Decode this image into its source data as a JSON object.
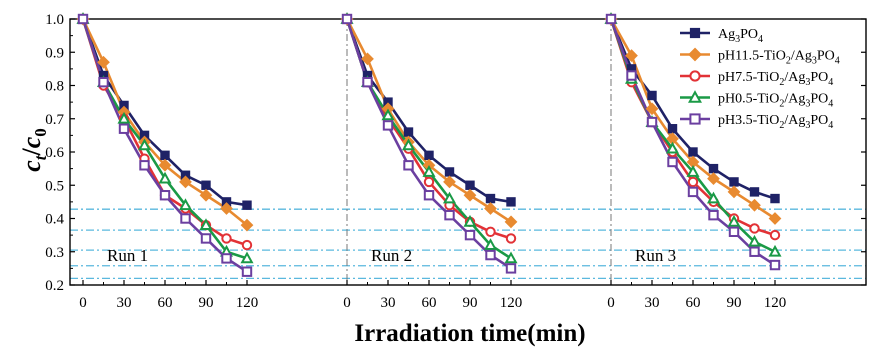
{
  "chart_data": {
    "type": "line",
    "xlabel": "Irradiation time(min)",
    "ylabel": {
      "main": "c",
      "sub1": "t",
      "sep": "/",
      "main2": "c",
      "sub2": "0"
    },
    "ylim": [
      0.2,
      1.0
    ],
    "yticks": [
      "0.2",
      "0.3",
      "0.4",
      "0.5",
      "0.6",
      "0.7",
      "0.8",
      "0.9",
      "1.0"
    ],
    "xticks": [
      "0",
      "30",
      "60",
      "90",
      "120"
    ],
    "x": [
      0,
      15,
      30,
      45,
      60,
      75,
      90,
      105,
      120
    ],
    "reference_lines_y": [
      0.428,
      0.365,
      0.305,
      0.258,
      0.22
    ],
    "runs": [
      {
        "label": "Run 1",
        "series_values": [
          [
            1.0,
            0.83,
            0.74,
            0.65,
            0.59,
            0.53,
            0.5,
            0.45,
            0.44
          ],
          [
            1.0,
            0.87,
            0.72,
            0.63,
            0.56,
            0.51,
            0.47,
            0.43,
            0.38
          ],
          [
            1.0,
            0.8,
            0.7,
            0.58,
            0.47,
            0.43,
            0.38,
            0.34,
            0.32
          ],
          [
            1.0,
            0.81,
            0.7,
            0.62,
            0.52,
            0.44,
            0.38,
            0.3,
            0.28
          ],
          [
            1.0,
            0.81,
            0.67,
            0.56,
            0.47,
            0.4,
            0.34,
            0.28,
            0.24
          ]
        ]
      },
      {
        "label": "Run 2",
        "series_values": [
          [
            1.0,
            0.83,
            0.75,
            0.66,
            0.59,
            0.54,
            0.5,
            0.46,
            0.45
          ],
          [
            1.0,
            0.88,
            0.73,
            0.63,
            0.56,
            0.51,
            0.47,
            0.43,
            0.39
          ],
          [
            1.0,
            0.81,
            0.7,
            0.61,
            0.51,
            0.44,
            0.39,
            0.36,
            0.34
          ],
          [
            1.0,
            0.81,
            0.71,
            0.62,
            0.54,
            0.46,
            0.39,
            0.32,
            0.28
          ],
          [
            1.0,
            0.81,
            0.68,
            0.56,
            0.47,
            0.41,
            0.35,
            0.29,
            0.25
          ]
        ]
      },
      {
        "label": "Run 3",
        "series_values": [
          [
            1.0,
            0.85,
            0.77,
            0.67,
            0.6,
            0.55,
            0.51,
            0.48,
            0.46
          ],
          [
            1.0,
            0.89,
            0.73,
            0.64,
            0.57,
            0.52,
            0.48,
            0.44,
            0.4
          ],
          [
            1.0,
            0.81,
            0.69,
            0.6,
            0.51,
            0.45,
            0.4,
            0.37,
            0.35
          ],
          [
            1.0,
            0.82,
            0.69,
            0.61,
            0.54,
            0.46,
            0.39,
            0.33,
            0.3
          ],
          [
            1.0,
            0.83,
            0.69,
            0.57,
            0.48,
            0.41,
            0.36,
            0.3,
            0.26
          ]
        ]
      }
    ],
    "series": [
      {
        "name": "Ag3PO4",
        "legend": {
          "parts": [
            [
              "Ag",
              0
            ],
            [
              "3",
              1
            ],
            [
              "PO",
              0
            ],
            [
              "4",
              1
            ]
          ]
        },
        "color": "#1f2266",
        "marker": "square-filled"
      },
      {
        "name": "pH11.5-TiO2/Ag3PO4",
        "legend": {
          "parts": [
            [
              "pH11.5-TiO",
              0
            ],
            [
              "2",
              1
            ],
            [
              "/Ag",
              0
            ],
            [
              "3",
              1
            ],
            [
              "PO",
              0
            ],
            [
              "4",
              1
            ]
          ]
        },
        "color": "#e88a30",
        "marker": "diamond-filled"
      },
      {
        "name": "pH7.5-TiO2/Ag3PO4",
        "legend": {
          "parts": [
            [
              "pH7.5-TiO",
              0
            ],
            [
              "2",
              1
            ],
            [
              "/Ag",
              0
            ],
            [
              "3",
              1
            ],
            [
              "PO",
              0
            ],
            [
              "4",
              1
            ]
          ]
        },
        "color": "#e23236",
        "marker": "circle-open"
      },
      {
        "name": "pH0.5-TiO2/Ag3PO4",
        "legend": {
          "parts": [
            [
              "pH0.5-TiO",
              0
            ],
            [
              "2",
              1
            ],
            [
              "/Ag",
              0
            ],
            [
              "3",
              1
            ],
            [
              "PO",
              0
            ],
            [
              "4",
              1
            ]
          ]
        },
        "color": "#1a9a46",
        "marker": "triangle-open"
      },
      {
        "name": "pH3.5-TiO2/Ag3PO4",
        "legend": {
          "parts": [
            [
              "pH3.5-TiO",
              0
            ],
            [
              "2",
              1
            ],
            [
              "/Ag",
              0
            ],
            [
              "3",
              1
            ],
            [
              "PO",
              0
            ],
            [
              "4",
              1
            ]
          ]
        },
        "color": "#6b3fa0",
        "marker": "square-open"
      }
    ],
    "colors": {
      "reference_line": "#5ab8de",
      "run_separator": "#777777"
    },
    "grid": false,
    "legend_position": "top-right"
  }
}
